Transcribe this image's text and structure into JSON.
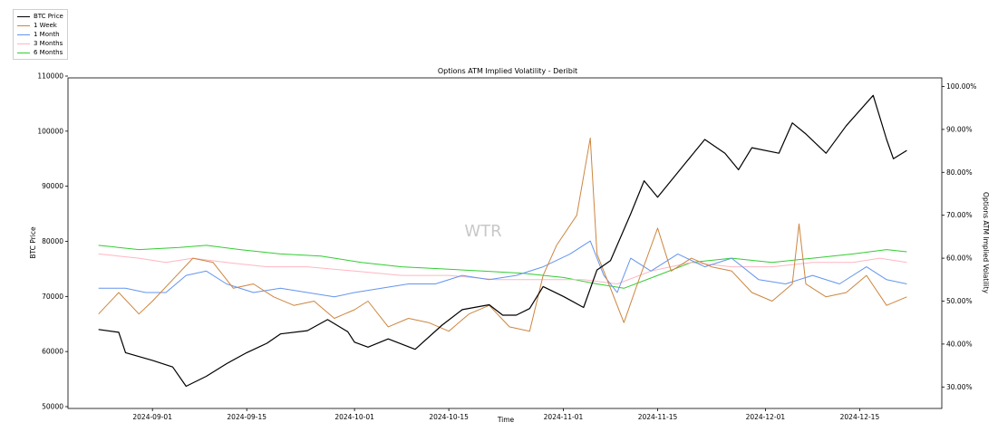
{
  "chart_data": {
    "type": "line",
    "title": "Options ATM Implied Volatility - Deribit",
    "xlabel": "Time",
    "ylabel_left": "BTC Price",
    "ylabel_right": "Options ATM Implied Volatility",
    "watermark": "WTR",
    "legend_position": "top-left, outside plot",
    "grid": false,
    "x_range": [
      "2024-08-24",
      "2024-12-22"
    ],
    "ylim_left": [
      50000,
      110000
    ],
    "ylim_right": [
      25,
      102
    ],
    "x_ticks": [
      "2024-09-01",
      "2024-09-15",
      "2024-10-01",
      "2024-10-15",
      "2024-11-01",
      "2024-11-15",
      "2024-12-01",
      "2024-12-15"
    ],
    "y_ticks_left": [
      "50000",
      "60000",
      "70000",
      "80000",
      "90000",
      "100000",
      "110000"
    ],
    "y_ticks_right": [
      "30.00%",
      "40.00%",
      "50.00%",
      "60.00%",
      "70.00%",
      "80.00%",
      "90.00%",
      "100.00%"
    ],
    "series": [
      {
        "name": "BTC Price",
        "axis": "left",
        "color": "#000000",
        "points": [
          [
            "2024-08-24",
            64000
          ],
          [
            "2024-08-27",
            63500
          ],
          [
            "2024-08-28",
            59800
          ],
          [
            "2024-09-01",
            58400
          ],
          [
            "2024-09-04",
            57200
          ],
          [
            "2024-09-06",
            53700
          ],
          [
            "2024-09-09",
            55500
          ],
          [
            "2024-09-12",
            57800
          ],
          [
            "2024-09-15",
            59800
          ],
          [
            "2024-09-18",
            61500
          ],
          [
            "2024-09-20",
            63200
          ],
          [
            "2024-09-24",
            63800
          ],
          [
            "2024-09-27",
            65800
          ],
          [
            "2024-09-30",
            63600
          ],
          [
            "2024-10-01",
            61700
          ],
          [
            "2024-10-03",
            60800
          ],
          [
            "2024-10-06",
            62300
          ],
          [
            "2024-10-10",
            60400
          ],
          [
            "2024-10-14",
            64800
          ],
          [
            "2024-10-17",
            67600
          ],
          [
            "2024-10-21",
            68500
          ],
          [
            "2024-10-23",
            66600
          ],
          [
            "2024-10-25",
            66600
          ],
          [
            "2024-10-27",
            67800
          ],
          [
            "2024-10-29",
            71800
          ],
          [
            "2024-11-01",
            70000
          ],
          [
            "2024-11-04",
            68000
          ],
          [
            "2024-11-06",
            74800
          ],
          [
            "2024-11-08",
            76500
          ],
          [
            "2024-11-11",
            85000
          ],
          [
            "2024-11-13",
            91000
          ],
          [
            "2024-11-15",
            88000
          ],
          [
            "2024-11-19",
            94000
          ],
          [
            "2024-11-22",
            98500
          ],
          [
            "2024-11-25",
            96000
          ],
          [
            "2024-11-27",
            93000
          ],
          [
            "2024-11-29",
            97000
          ],
          [
            "2024-12-03",
            96000
          ],
          [
            "2024-12-05",
            101500
          ],
          [
            "2024-12-07",
            99500
          ],
          [
            "2024-12-10",
            96000
          ],
          [
            "2024-12-13",
            101000
          ],
          [
            "2024-12-17",
            106500
          ],
          [
            "2024-12-19",
            98500
          ],
          [
            "2024-12-20",
            95000
          ],
          [
            "2024-12-22",
            96500
          ]
        ]
      },
      {
        "name": "1 Week",
        "axis": "right",
        "color": "#cd853f",
        "points": [
          [
            "2024-08-24",
            47
          ],
          [
            "2024-08-27",
            52
          ],
          [
            "2024-08-30",
            47
          ],
          [
            "2024-09-01",
            50
          ],
          [
            "2024-09-04",
            55
          ],
          [
            "2024-09-07",
            60
          ],
          [
            "2024-09-10",
            59
          ],
          [
            "2024-09-13",
            53
          ],
          [
            "2024-09-16",
            54
          ],
          [
            "2024-09-19",
            51
          ],
          [
            "2024-09-22",
            49
          ],
          [
            "2024-09-25",
            50
          ],
          [
            "2024-09-28",
            46
          ],
          [
            "2024-10-01",
            48
          ],
          [
            "2024-10-03",
            50
          ],
          [
            "2024-10-06",
            44
          ],
          [
            "2024-10-09",
            46
          ],
          [
            "2024-10-12",
            45
          ],
          [
            "2024-10-15",
            43
          ],
          [
            "2024-10-18",
            47
          ],
          [
            "2024-10-21",
            49
          ],
          [
            "2024-10-24",
            44
          ],
          [
            "2024-10-27",
            43
          ],
          [
            "2024-10-29",
            56
          ],
          [
            "2024-10-31",
            63
          ],
          [
            "2024-11-03",
            70
          ],
          [
            "2024-11-05",
            88
          ],
          [
            "2024-11-06",
            61
          ],
          [
            "2024-11-08",
            53
          ],
          [
            "2024-11-10",
            45
          ],
          [
            "2024-11-12",
            54
          ],
          [
            "2024-11-15",
            67
          ],
          [
            "2024-11-17",
            57
          ],
          [
            "2024-11-20",
            60
          ],
          [
            "2024-11-23",
            58
          ],
          [
            "2024-11-26",
            57
          ],
          [
            "2024-11-29",
            52
          ],
          [
            "2024-12-02",
            50
          ],
          [
            "2024-12-05",
            54
          ],
          [
            "2024-12-06",
            68
          ],
          [
            "2024-12-07",
            54
          ],
          [
            "2024-12-10",
            51
          ],
          [
            "2024-12-13",
            52
          ],
          [
            "2024-12-16",
            56
          ],
          [
            "2024-12-19",
            49
          ],
          [
            "2024-12-22",
            51
          ]
        ]
      },
      {
        "name": "1 Month",
        "axis": "right",
        "color": "#6495ed",
        "points": [
          [
            "2024-08-24",
            53
          ],
          [
            "2024-08-28",
            53
          ],
          [
            "2024-08-31",
            52
          ],
          [
            "2024-09-03",
            52
          ],
          [
            "2024-09-06",
            56
          ],
          [
            "2024-09-09",
            57
          ],
          [
            "2024-09-12",
            54
          ],
          [
            "2024-09-16",
            52
          ],
          [
            "2024-09-20",
            53
          ],
          [
            "2024-09-24",
            52
          ],
          [
            "2024-09-28",
            51
          ],
          [
            "2024-10-01",
            52
          ],
          [
            "2024-10-05",
            53
          ],
          [
            "2024-10-09",
            54
          ],
          [
            "2024-10-13",
            54
          ],
          [
            "2024-10-17",
            56
          ],
          [
            "2024-10-21",
            55
          ],
          [
            "2024-10-25",
            56
          ],
          [
            "2024-10-29",
            58
          ],
          [
            "2024-11-02",
            61
          ],
          [
            "2024-11-05",
            64
          ],
          [
            "2024-11-07",
            56
          ],
          [
            "2024-11-09",
            52
          ],
          [
            "2024-11-11",
            60
          ],
          [
            "2024-11-14",
            57
          ],
          [
            "2024-11-18",
            61
          ],
          [
            "2024-11-22",
            58
          ],
          [
            "2024-11-26",
            60
          ],
          [
            "2024-11-30",
            55
          ],
          [
            "2024-12-04",
            54
          ],
          [
            "2024-12-08",
            56
          ],
          [
            "2024-12-12",
            54
          ],
          [
            "2024-12-16",
            58
          ],
          [
            "2024-12-19",
            55
          ],
          [
            "2024-12-22",
            54
          ]
        ]
      },
      {
        "name": "3 Months",
        "axis": "right",
        "color": "#ffb6c1",
        "points": [
          [
            "2024-08-24",
            61
          ],
          [
            "2024-08-30",
            60
          ],
          [
            "2024-09-03",
            59
          ],
          [
            "2024-09-07",
            60
          ],
          [
            "2024-09-12",
            59
          ],
          [
            "2024-09-18",
            58
          ],
          [
            "2024-09-24",
            58
          ],
          [
            "2024-10-01",
            57
          ],
          [
            "2024-10-08",
            56
          ],
          [
            "2024-10-15",
            56
          ],
          [
            "2024-10-22",
            55
          ],
          [
            "2024-10-29",
            55
          ],
          [
            "2024-11-04",
            55
          ],
          [
            "2024-11-09",
            54
          ],
          [
            "2024-11-14",
            57
          ],
          [
            "2024-11-20",
            59
          ],
          [
            "2024-11-26",
            58
          ],
          [
            "2024-12-02",
            58
          ],
          [
            "2024-12-08",
            59
          ],
          [
            "2024-12-14",
            59
          ],
          [
            "2024-12-18",
            60
          ],
          [
            "2024-12-22",
            59
          ]
        ]
      },
      {
        "name": "6 Months",
        "axis": "right",
        "color": "#32cd32",
        "points": [
          [
            "2024-08-24",
            63
          ],
          [
            "2024-08-30",
            62
          ],
          [
            "2024-09-05",
            62.5
          ],
          [
            "2024-09-09",
            63
          ],
          [
            "2024-09-14",
            62
          ],
          [
            "2024-09-20",
            61
          ],
          [
            "2024-09-26",
            60.5
          ],
          [
            "2024-10-02",
            59
          ],
          [
            "2024-10-08",
            58
          ],
          [
            "2024-10-14",
            57.5
          ],
          [
            "2024-10-20",
            57
          ],
          [
            "2024-10-26",
            56.5
          ],
          [
            "2024-11-01",
            55.5
          ],
          [
            "2024-11-06",
            54
          ],
          [
            "2024-11-10",
            53
          ],
          [
            "2024-11-15",
            56
          ],
          [
            "2024-11-20",
            59
          ],
          [
            "2024-11-26",
            60
          ],
          [
            "2024-12-02",
            59
          ],
          [
            "2024-12-08",
            60
          ],
          [
            "2024-12-14",
            61
          ],
          [
            "2024-12-19",
            62
          ],
          [
            "2024-12-22",
            61.5
          ]
        ]
      }
    ]
  }
}
